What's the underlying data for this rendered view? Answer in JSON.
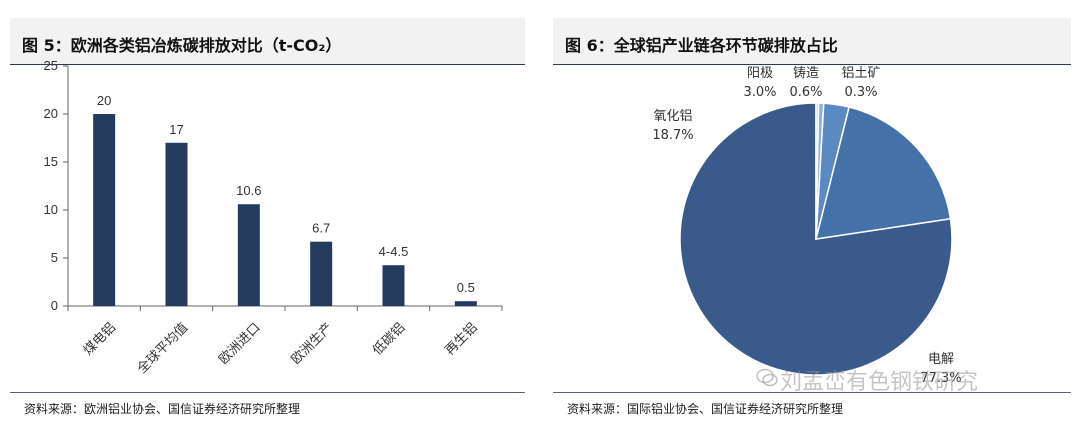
{
  "left": {
    "title": "图 5：欧洲各类铝冶炼碳排放对比（t-CO₂）",
    "source": "资料来源：欧洲铝业协会、国信证券经济研究所整理"
  },
  "right": {
    "title": "图 6：全球铝产业链各环节碳排放占比",
    "source": "资料来源：国际铝业协会、国信证券经济研究所整理"
  },
  "watermark": "刘孟峦有色钢铁研究",
  "chart_data": [
    {
      "type": "bar",
      "title": "",
      "categories": [
        "煤电铝",
        "全球平均值",
        "欧洲进口",
        "欧洲生产",
        "低碳铝",
        "再生铝"
      ],
      "values": [
        20,
        17,
        10.6,
        6.7,
        4.25,
        0.5
      ],
      "data_labels": [
        "20",
        "17",
        "10.6",
        "6.7",
        "4-4.5",
        "0.5"
      ],
      "ylim": [
        0,
        25
      ],
      "yticks": [
        0,
        5,
        10,
        15,
        20,
        25
      ],
      "color": "#243b5e",
      "grid": false
    },
    {
      "type": "pie",
      "title": "",
      "slices": [
        {
          "label": "电解",
          "value": 77.3,
          "pct_text": "77.3%",
          "color": "#3a5a8c"
        },
        {
          "label": "氧化铝",
          "value": 18.7,
          "pct_text": "18.7%",
          "color": "#4471a8"
        },
        {
          "label": "阳极",
          "value": 3.0,
          "pct_text": "3.0%",
          "color": "#5b89c2"
        },
        {
          "label": "铸造",
          "value": 0.6,
          "pct_text": "0.6%",
          "color": "#8fb0d8"
        },
        {
          "label": "铝土矿",
          "value": 0.3,
          "pct_text": "0.3%",
          "color": "#c6d6ea"
        }
      ]
    }
  ]
}
